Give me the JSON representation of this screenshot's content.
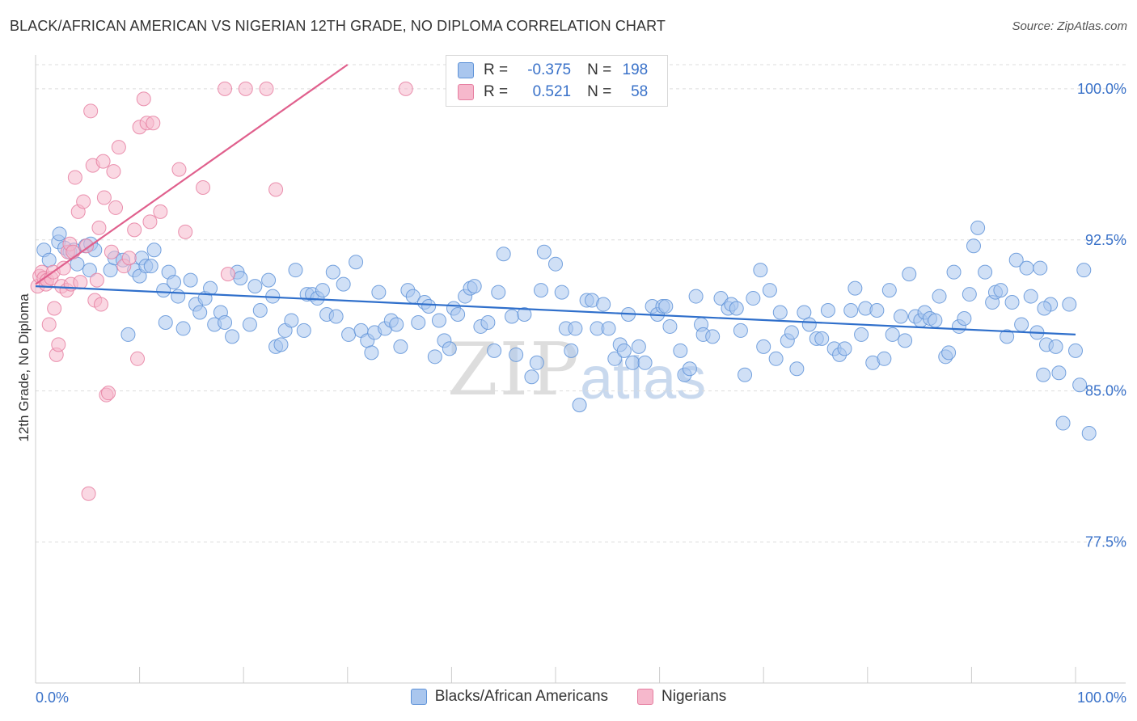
{
  "header": {
    "title": "BLACK/AFRICAN AMERICAN VS NIGERIAN 12TH GRADE, NO DIPLOMA CORRELATION CHART",
    "source": "Source: ZipAtlas.com"
  },
  "watermark": {
    "zip": "ZIP",
    "atlas": "atlas"
  },
  "stats": {
    "blue": {
      "r_label": "R =",
      "r_value": "-0.375",
      "n_label": "N =",
      "n_value": "198"
    },
    "pink": {
      "r_label": "R =",
      "r_value": "0.521",
      "n_label": "N =",
      "n_value": "58"
    }
  },
  "legend": {
    "blue_label": "Blacks/African Americans",
    "pink_label": "Nigerians"
  },
  "colors": {
    "blue_fill": "#a9c6ee",
    "blue_stroke": "#5f93d8",
    "blue_line": "#2f6fcb",
    "pink_fill": "#f6b8cc",
    "pink_stroke": "#e67fa1",
    "pink_line": "#e0608d",
    "axis_label": "#3a72c9",
    "grid": "#dddddd"
  },
  "chart_data": {
    "type": "scatter",
    "title": "BLACK/AFRICAN AMERICAN VS NIGERIAN 12TH GRADE, NO DIPLOMA CORRELATION CHART",
    "xlabel": "",
    "ylabel": "12th Grade, No Diploma",
    "xlim": [
      0,
      100
    ],
    "ylim": [
      70.5,
      101.2
    ],
    "x_tick_labels": [
      "0.0%",
      "100.0%"
    ],
    "y_ticks": [
      77.5,
      85.0,
      92.5,
      100.0
    ],
    "y_tick_labels": [
      "77.5%",
      "85.0%",
      "92.5%",
      "100.0%"
    ],
    "grid": "horizontal dashed",
    "series": [
      {
        "name": "Blacks/African Americans",
        "color": "#5f93d8",
        "trend": {
          "x": [
            0,
            100
          ],
          "y": [
            90.2,
            87.8
          ]
        },
        "points": [
          [
            0.8,
            92.0
          ],
          [
            1.3,
            91.5
          ],
          [
            2.2,
            92.4
          ],
          [
            2.3,
            92.8
          ],
          [
            2.8,
            92.1
          ],
          [
            3.3,
            91.9
          ],
          [
            3.7,
            92.0
          ],
          [
            4.0,
            91.3
          ],
          [
            4.8,
            92.2
          ],
          [
            5.3,
            92.3
          ],
          [
            5.7,
            92.0
          ],
          [
            5.2,
            91.0
          ],
          [
            7.2,
            91.0
          ],
          [
            7.6,
            91.6
          ],
          [
            8.4,
            91.5
          ],
          [
            8.9,
            87.8
          ],
          [
            9.5,
            91.0
          ],
          [
            10.0,
            90.7
          ],
          [
            10.2,
            91.6
          ],
          [
            10.6,
            91.2
          ],
          [
            11.1,
            91.2
          ],
          [
            11.4,
            92.0
          ],
          [
            12.3,
            90.0
          ],
          [
            12.5,
            88.4
          ],
          [
            12.8,
            90.9
          ],
          [
            13.3,
            90.4
          ],
          [
            13.7,
            89.7
          ],
          [
            14.2,
            88.1
          ],
          [
            14.9,
            90.5
          ],
          [
            15.4,
            89.3
          ],
          [
            15.8,
            88.9
          ],
          [
            16.3,
            89.6
          ],
          [
            16.8,
            90.1
          ],
          [
            17.2,
            88.3
          ],
          [
            17.8,
            88.9
          ],
          [
            18.2,
            88.4
          ],
          [
            18.9,
            87.7
          ],
          [
            19.4,
            90.9
          ],
          [
            19.7,
            90.6
          ],
          [
            20.6,
            88.3
          ],
          [
            21.1,
            90.2
          ],
          [
            21.6,
            89.0
          ],
          [
            22.4,
            90.5
          ],
          [
            22.8,
            89.7
          ],
          [
            23.1,
            87.2
          ],
          [
            23.6,
            87.3
          ],
          [
            24.0,
            88.0
          ],
          [
            24.6,
            88.5
          ],
          [
            25.0,
            91.0
          ],
          [
            25.8,
            88.0
          ],
          [
            26.1,
            89.8
          ],
          [
            26.6,
            89.8
          ],
          [
            27.1,
            89.6
          ],
          [
            27.6,
            90.0
          ],
          [
            28.0,
            88.8
          ],
          [
            28.6,
            90.9
          ],
          [
            28.9,
            88.7
          ],
          [
            29.6,
            90.3
          ],
          [
            30.1,
            87.8
          ],
          [
            30.8,
            91.4
          ],
          [
            31.3,
            88.0
          ],
          [
            31.9,
            87.5
          ],
          [
            32.3,
            86.9
          ],
          [
            32.6,
            87.9
          ],
          [
            33.0,
            89.9
          ],
          [
            33.6,
            88.1
          ],
          [
            34.2,
            88.5
          ],
          [
            34.7,
            88.3
          ],
          [
            35.1,
            87.2
          ],
          [
            35.8,
            90.0
          ],
          [
            36.3,
            89.7
          ],
          [
            36.8,
            88.4
          ],
          [
            37.4,
            89.4
          ],
          [
            37.8,
            89.2
          ],
          [
            38.4,
            86.7
          ],
          [
            38.8,
            88.5
          ],
          [
            39.3,
            87.5
          ],
          [
            39.8,
            87.1
          ],
          [
            40.2,
            89.1
          ],
          [
            40.6,
            88.8
          ],
          [
            41.3,
            89.7
          ],
          [
            41.8,
            90.1
          ],
          [
            42.2,
            90.2
          ],
          [
            42.8,
            88.2
          ],
          [
            43.5,
            88.4
          ],
          [
            44.1,
            87.0
          ],
          [
            44.5,
            89.9
          ],
          [
            45.0,
            91.8
          ],
          [
            45.8,
            88.7
          ],
          [
            46.2,
            86.8
          ],
          [
            47.0,
            88.8
          ],
          [
            47.7,
            85.7
          ],
          [
            48.2,
            86.4
          ],
          [
            48.6,
            90.0
          ],
          [
            48.9,
            91.9
          ],
          [
            50.0,
            91.3
          ],
          [
            50.6,
            89.9
          ],
          [
            51.0,
            88.1
          ],
          [
            51.5,
            87.0
          ],
          [
            51.9,
            88.1
          ],
          [
            52.3,
            84.3
          ],
          [
            53.0,
            89.5
          ],
          [
            53.5,
            89.5
          ],
          [
            54.0,
            88.1
          ],
          [
            54.6,
            89.3
          ],
          [
            55.1,
            88.1
          ],
          [
            55.7,
            86.6
          ],
          [
            56.2,
            87.3
          ],
          [
            56.6,
            87.0
          ],
          [
            57.0,
            88.8
          ],
          [
            57.4,
            86.4
          ],
          [
            58.0,
            87.2
          ],
          [
            58.6,
            86.4
          ],
          [
            59.3,
            89.2
          ],
          [
            59.8,
            88.8
          ],
          [
            60.3,
            89.2
          ],
          [
            60.6,
            89.2
          ],
          [
            61.0,
            88.2
          ],
          [
            62.0,
            87.0
          ],
          [
            62.4,
            85.8
          ],
          [
            62.9,
            86.1
          ],
          [
            63.5,
            89.7
          ],
          [
            64.0,
            88.3
          ],
          [
            64.2,
            87.8
          ],
          [
            65.1,
            87.7
          ],
          [
            65.9,
            89.6
          ],
          [
            66.6,
            89.1
          ],
          [
            66.9,
            89.3
          ],
          [
            67.4,
            89.1
          ],
          [
            67.8,
            88.0
          ],
          [
            68.2,
            85.8
          ],
          [
            69.0,
            89.6
          ],
          [
            69.7,
            91.0
          ],
          [
            70.0,
            87.2
          ],
          [
            70.6,
            90.0
          ],
          [
            71.2,
            86.6
          ],
          [
            71.6,
            88.9
          ],
          [
            72.3,
            87.5
          ],
          [
            72.7,
            87.9
          ],
          [
            73.2,
            86.1
          ],
          [
            73.9,
            88.9
          ],
          [
            74.4,
            88.3
          ],
          [
            75.1,
            87.6
          ],
          [
            75.6,
            87.6
          ],
          [
            76.2,
            89.0
          ],
          [
            76.8,
            87.1
          ],
          [
            77.3,
            86.8
          ],
          [
            77.8,
            87.1
          ],
          [
            78.4,
            89.0
          ],
          [
            78.8,
            90.1
          ],
          [
            79.4,
            87.8
          ],
          [
            79.8,
            89.1
          ],
          [
            80.5,
            86.4
          ],
          [
            80.9,
            89.0
          ],
          [
            81.6,
            86.6
          ],
          [
            82.1,
            90.0
          ],
          [
            82.4,
            87.8
          ],
          [
            83.2,
            88.7
          ],
          [
            83.6,
            87.5
          ],
          [
            84.0,
            90.8
          ],
          [
            84.6,
            88.7
          ],
          [
            85.1,
            88.5
          ],
          [
            85.5,
            88.9
          ],
          [
            86.0,
            88.6
          ],
          [
            86.5,
            88.5
          ],
          [
            86.9,
            89.7
          ],
          [
            87.5,
            86.7
          ],
          [
            87.8,
            86.9
          ],
          [
            88.3,
            90.9
          ],
          [
            88.8,
            88.2
          ],
          [
            89.3,
            88.6
          ],
          [
            89.8,
            89.8
          ],
          [
            90.2,
            92.2
          ],
          [
            90.6,
            93.1
          ],
          [
            91.3,
            90.9
          ],
          [
            92.0,
            89.4
          ],
          [
            92.3,
            89.9
          ],
          [
            92.8,
            90.0
          ],
          [
            93.4,
            87.7
          ],
          [
            93.9,
            89.4
          ],
          [
            94.3,
            91.5
          ],
          [
            94.8,
            88.3
          ],
          [
            95.3,
            91.1
          ],
          [
            95.7,
            89.7
          ],
          [
            96.3,
            87.9
          ],
          [
            96.6,
            91.1
          ],
          [
            97.2,
            87.3
          ],
          [
            97.6,
            89.3
          ],
          [
            98.1,
            87.2
          ],
          [
            98.4,
            85.9
          ],
          [
            98.8,
            83.4
          ],
          [
            99.4,
            89.3
          ],
          [
            100.0,
            87.0
          ],
          [
            100.4,
            85.3
          ],
          [
            100.8,
            91.0
          ],
          [
            101.3,
            82.9
          ],
          [
            96.9,
            85.8
          ],
          [
            97.0,
            89.1
          ]
        ]
      },
      {
        "name": "Nigerians",
        "color": "#e67fa1",
        "trend": {
          "x": [
            0,
            30
          ],
          "y": [
            90.3,
            101.2
          ]
        },
        "points": [
          [
            0.2,
            90.2
          ],
          [
            0.4,
            90.7
          ],
          [
            0.6,
            90.9
          ],
          [
            0.8,
            90.6
          ],
          [
            1.0,
            90.3
          ],
          [
            1.1,
            90.5
          ],
          [
            1.3,
            88.3
          ],
          [
            1.5,
            90.6
          ],
          [
            1.7,
            90.9
          ],
          [
            1.8,
            89.1
          ],
          [
            2.0,
            86.8
          ],
          [
            2.2,
            87.3
          ],
          [
            2.5,
            90.2
          ],
          [
            2.7,
            91.1
          ],
          [
            3.0,
            90.0
          ],
          [
            3.1,
            91.9
          ],
          [
            3.3,
            92.3
          ],
          [
            3.4,
            90.3
          ],
          [
            3.6,
            91.9
          ],
          [
            3.8,
            95.6
          ],
          [
            4.1,
            93.9
          ],
          [
            4.3,
            90.4
          ],
          [
            4.6,
            94.4
          ],
          [
            4.9,
            92.2
          ],
          [
            5.1,
            79.9
          ],
          [
            5.3,
            98.9
          ],
          [
            5.5,
            96.2
          ],
          [
            5.7,
            89.5
          ],
          [
            5.9,
            90.5
          ],
          [
            6.1,
            93.1
          ],
          [
            6.3,
            89.3
          ],
          [
            6.5,
            96.4
          ],
          [
            6.6,
            94.6
          ],
          [
            6.8,
            84.8
          ],
          [
            7.0,
            84.9
          ],
          [
            7.3,
            91.9
          ],
          [
            7.5,
            95.9
          ],
          [
            7.7,
            94.1
          ],
          [
            8.0,
            97.1
          ],
          [
            8.5,
            91.2
          ],
          [
            9.0,
            91.6
          ],
          [
            9.5,
            93.0
          ],
          [
            9.8,
            86.6
          ],
          [
            10.0,
            98.1
          ],
          [
            10.4,
            99.5
          ],
          [
            10.7,
            98.3
          ],
          [
            11.0,
            93.4
          ],
          [
            11.3,
            98.3
          ],
          [
            12.0,
            93.9
          ],
          [
            13.8,
            96.0
          ],
          [
            14.4,
            92.9
          ],
          [
            16.1,
            95.1
          ],
          [
            18.2,
            100.0
          ],
          [
            18.5,
            90.8
          ],
          [
            20.2,
            100.0
          ],
          [
            22.2,
            100.0
          ],
          [
            23.1,
            95.0
          ],
          [
            35.6,
            100.0
          ]
        ]
      }
    ]
  }
}
